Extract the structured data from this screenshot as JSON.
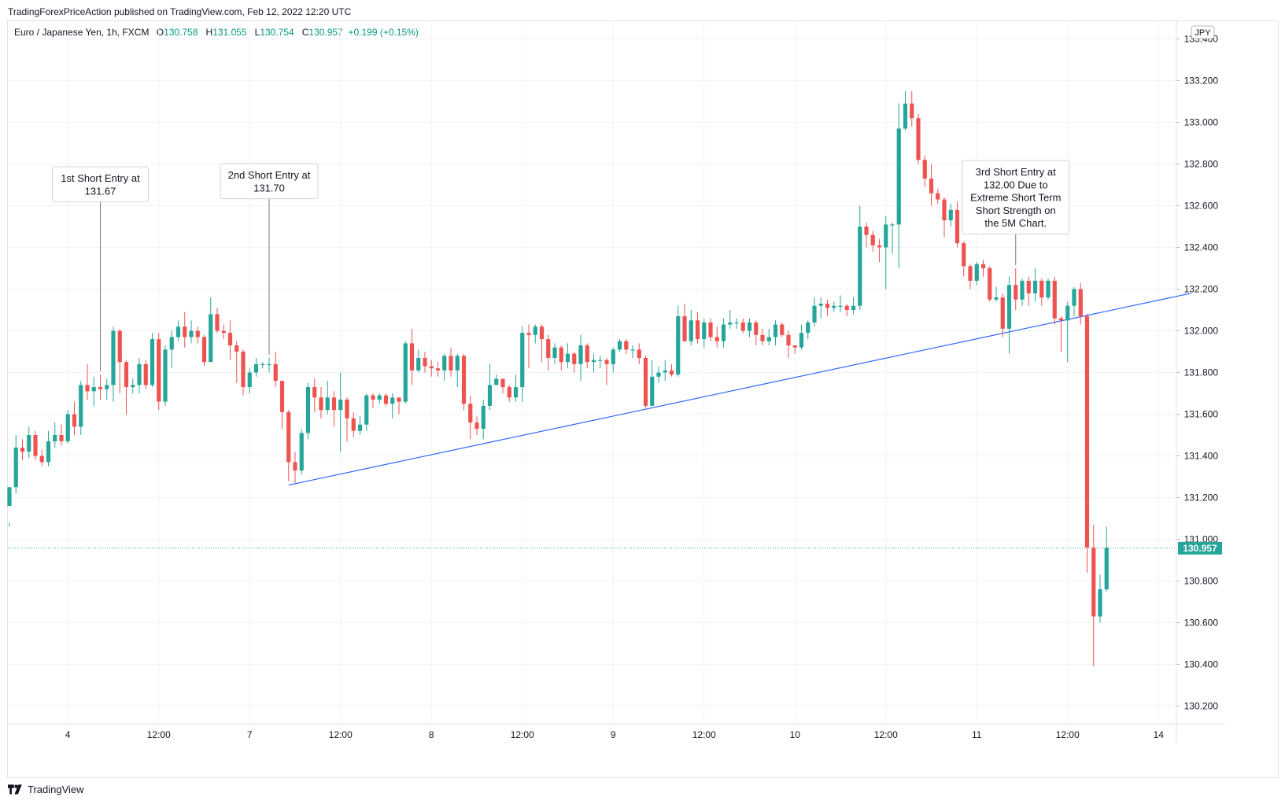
{
  "header": {
    "published": "TradingForexPriceAction published on TradingView.com, Feb 12, 2022 12:20 UTC"
  },
  "legend": {
    "symbol": "Euro / Japanese Yen, 1h, FXCM",
    "o_key": "O",
    "o": "130.758",
    "h_key": "H",
    "h": "131.055",
    "l_key": "L",
    "l": "130.754",
    "c_key": "C",
    "c": "130.957",
    "change": "+0.199 (+0.15%)"
  },
  "footer": {
    "brand": "TradingView"
  },
  "colors": {
    "up": "#26a69a",
    "down": "#ef5350",
    "trendline": "#2962ff",
    "price_tag": "#26a69a"
  },
  "chart_data": {
    "type": "candlestick",
    "currency": "JPY",
    "last_price": "130.957",
    "ylim": [
      130.13,
      133.53
    ],
    "y_ticks": [
      "130.200",
      "130.400",
      "130.600",
      "130.800",
      "131.000",
      "131.200",
      "131.400",
      "131.600",
      "131.800",
      "132.000",
      "132.200",
      "132.400",
      "132.600",
      "132.800",
      "133.000",
      "133.200",
      "133.400"
    ],
    "x_ticks": [
      {
        "label": "4",
        "i": 9
      },
      {
        "label": "12:00",
        "i": 23
      },
      {
        "label": "7",
        "i": 37
      },
      {
        "label": "12:00",
        "i": 51
      },
      {
        "label": "8",
        "i": 65
      },
      {
        "label": "12:00",
        "i": 79
      },
      {
        "label": "9",
        "i": 93
      },
      {
        "label": "12:00",
        "i": 107
      },
      {
        "label": "10",
        "i": 121
      },
      {
        "label": "12:00",
        "i": 135
      },
      {
        "label": "11",
        "i": 149
      },
      {
        "label": "12:00",
        "i": 163
      },
      {
        "label": "14",
        "i": 177
      }
    ],
    "candles": [
      [
        131.16,
        131.25,
        131.08,
        131.06
      ],
      [
        131.25,
        131.44,
        131.5,
        131.22
      ],
      [
        131.44,
        131.42,
        131.48,
        131.38
      ],
      [
        131.42,
        131.5,
        131.54,
        131.39
      ],
      [
        131.5,
        131.4,
        131.52,
        131.38
      ],
      [
        131.4,
        131.37,
        131.43,
        131.35
      ],
      [
        131.37,
        131.47,
        131.52,
        131.35
      ],
      [
        131.47,
        131.5,
        131.56,
        131.44
      ],
      [
        131.5,
        131.47,
        131.55,
        131.45
      ],
      [
        131.47,
        131.6,
        131.62,
        131.46
      ],
      [
        131.6,
        131.54,
        131.66,
        131.5
      ],
      [
        131.54,
        131.74,
        131.76,
        131.5
      ],
      [
        131.74,
        131.71,
        131.84,
        131.67
      ],
      [
        131.71,
        131.73,
        131.78,
        131.64
      ],
      [
        131.73,
        131.72,
        131.79,
        131.67
      ],
      [
        131.72,
        131.74,
        131.77,
        131.67
      ],
      [
        131.74,
        132.0,
        132.02,
        131.66
      ],
      [
        132.0,
        131.85,
        132.01,
        131.7
      ],
      [
        131.85,
        131.73,
        131.86,
        131.6
      ],
      [
        131.73,
        131.74,
        131.77,
        131.7
      ],
      [
        131.74,
        131.84,
        131.87,
        131.7
      ],
      [
        131.84,
        131.74,
        131.86,
        131.72
      ],
      [
        131.74,
        131.96,
        131.99,
        131.73
      ],
      [
        131.96,
        131.66,
        131.99,
        131.62
      ],
      [
        131.66,
        131.91,
        131.93,
        131.64
      ],
      [
        131.91,
        131.97,
        132.0,
        131.82
      ],
      [
        131.97,
        132.02,
        132.05,
        131.95
      ],
      [
        132.02,
        131.97,
        132.09,
        131.92
      ],
      [
        131.97,
        132.0,
        132.05,
        131.94
      ],
      [
        132.0,
        131.97,
        132.02,
        131.94
      ],
      [
        131.97,
        131.85,
        131.98,
        131.83
      ],
      [
        131.85,
        132.08,
        132.16,
        131.88
      ],
      [
        132.08,
        132.0,
        132.11,
        131.99
      ],
      [
        132.0,
        131.99,
        132.03,
        131.96
      ],
      [
        131.99,
        131.93,
        132.05,
        131.86
      ],
      [
        131.93,
        131.9,
        131.95,
        131.75
      ],
      [
        131.9,
        131.73,
        131.91,
        131.69
      ],
      [
        131.73,
        131.8,
        131.82,
        131.7
      ],
      [
        131.8,
        131.84,
        131.87,
        131.78
      ],
      [
        131.84,
        131.84,
        131.85,
        131.82
      ],
      [
        131.84,
        131.84,
        131.87,
        131.8
      ],
      [
        131.84,
        131.76,
        131.9,
        131.73
      ],
      [
        131.76,
        131.61,
        131.76,
        131.53
      ],
      [
        131.61,
        131.37,
        131.62,
        131.28
      ],
      [
        131.37,
        131.33,
        131.42,
        131.27
      ],
      [
        131.33,
        131.51,
        131.53,
        131.31
      ],
      [
        131.51,
        131.73,
        131.75,
        131.48
      ],
      [
        131.73,
        131.68,
        131.77,
        131.61
      ],
      [
        131.68,
        131.62,
        131.73,
        131.58
      ],
      [
        131.62,
        131.68,
        131.76,
        131.6
      ],
      [
        131.68,
        131.62,
        131.71,
        131.54
      ],
      [
        131.62,
        131.67,
        131.8,
        131.42
      ],
      [
        131.67,
        131.58,
        131.68,
        131.47
      ],
      [
        131.58,
        131.52,
        131.61,
        131.49
      ],
      [
        131.52,
        131.55,
        131.59,
        131.5
      ],
      [
        131.55,
        131.69,
        131.7,
        131.52
      ],
      [
        131.69,
        131.67,
        131.7,
        131.63
      ],
      [
        131.67,
        131.69,
        131.7,
        131.65
      ],
      [
        131.69,
        131.65,
        131.7,
        131.64
      ],
      [
        131.65,
        131.68,
        131.7,
        131.58
      ],
      [
        131.68,
        131.66,
        131.68,
        131.6
      ],
      [
        131.66,
        131.94,
        131.95,
        131.65
      ],
      [
        131.94,
        131.81,
        132.01,
        131.74
      ],
      [
        131.81,
        131.87,
        131.91,
        131.8
      ],
      [
        131.87,
        131.83,
        131.9,
        131.8
      ],
      [
        131.83,
        131.82,
        131.86,
        131.78
      ],
      [
        131.82,
        131.81,
        131.85,
        131.78
      ],
      [
        131.81,
        131.88,
        131.89,
        131.76
      ],
      [
        131.88,
        131.81,
        131.92,
        131.78
      ],
      [
        131.81,
        131.88,
        131.89,
        131.73
      ],
      [
        131.88,
        131.65,
        131.89,
        131.62
      ],
      [
        131.65,
        131.56,
        131.69,
        131.48
      ],
      [
        131.56,
        131.53,
        131.59,
        131.5
      ],
      [
        131.53,
        131.64,
        131.67,
        131.48
      ],
      [
        131.64,
        131.74,
        131.84,
        131.62
      ],
      [
        131.74,
        131.77,
        131.79,
        131.74
      ],
      [
        131.77,
        131.73,
        131.77,
        131.7
      ],
      [
        131.73,
        131.68,
        131.74,
        131.66
      ],
      [
        131.68,
        131.73,
        131.79,
        131.66
      ],
      [
        131.73,
        131.99,
        132.02,
        131.66
      ],
      [
        131.99,
        131.98,
        132.03,
        131.82
      ],
      [
        131.98,
        132.02,
        132.03,
        131.94
      ],
      [
        132.02,
        131.96,
        132.03,
        131.85
      ],
      [
        131.96,
        131.87,
        131.98,
        131.81
      ],
      [
        131.87,
        131.92,
        131.94,
        131.84
      ],
      [
        131.92,
        131.85,
        131.93,
        131.81
      ],
      [
        131.85,
        131.89,
        131.94,
        131.82
      ],
      [
        131.89,
        131.84,
        131.9,
        131.8
      ],
      [
        131.84,
        131.93,
        131.98,
        131.76
      ],
      [
        131.93,
        131.85,
        131.94,
        131.82
      ],
      [
        131.85,
        131.86,
        131.89,
        131.8
      ],
      [
        131.86,
        131.86,
        131.88,
        131.82
      ],
      [
        131.86,
        131.84,
        131.87,
        131.74
      ],
      [
        131.84,
        131.91,
        131.92,
        131.8
      ],
      [
        131.91,
        131.95,
        131.96,
        131.9
      ],
      [
        131.95,
        131.91,
        131.96,
        131.89
      ],
      [
        131.91,
        131.91,
        131.93,
        131.87
      ],
      [
        131.91,
        131.87,
        131.94,
        131.84
      ],
      [
        131.87,
        131.64,
        131.88,
        131.63
      ],
      [
        131.64,
        131.78,
        131.86,
        131.64
      ],
      [
        131.78,
        131.8,
        131.83,
        131.75
      ],
      [
        131.8,
        131.81,
        131.86,
        131.76
      ],
      [
        131.81,
        131.79,
        131.84,
        131.78
      ],
      [
        131.79,
        132.07,
        132.12,
        131.78
      ],
      [
        132.07,
        131.95,
        132.13,
        131.95
      ],
      [
        131.95,
        132.05,
        132.1,
        131.93
      ],
      [
        132.05,
        131.96,
        132.09,
        131.94
      ],
      [
        131.96,
        132.04,
        132.06,
        131.92
      ],
      [
        132.04,
        131.97,
        132.06,
        131.95
      ],
      [
        131.97,
        131.95,
        132.02,
        131.92
      ],
      [
        131.95,
        132.03,
        132.06,
        131.92
      ],
      [
        132.03,
        132.04,
        132.1,
        132.01
      ],
      [
        132.04,
        132.04,
        132.06,
        132.01
      ],
      [
        132.04,
        132.0,
        132.06,
        131.99
      ],
      [
        132.0,
        132.04,
        132.06,
        131.97
      ],
      [
        132.04,
        131.98,
        132.05,
        131.93
      ],
      [
        131.98,
        131.95,
        132.01,
        131.93
      ],
      [
        131.95,
        131.97,
        132.01,
        131.93
      ],
      [
        131.97,
        132.03,
        132.05,
        131.93
      ],
      [
        132.03,
        131.98,
        132.04,
        131.97
      ],
      [
        131.98,
        131.93,
        132.0,
        131.87
      ],
      [
        131.93,
        131.92,
        131.93,
        131.89
      ],
      [
        131.92,
        131.99,
        132.03,
        131.91
      ],
      [
        131.99,
        132.04,
        132.05,
        131.96
      ],
      [
        132.04,
        132.12,
        132.16,
        132.02
      ],
      [
        132.12,
        132.13,
        132.16,
        132.06
      ],
      [
        132.13,
        132.11,
        132.15,
        132.07
      ],
      [
        132.11,
        132.12,
        132.14,
        132.09
      ],
      [
        132.12,
        132.12,
        132.17,
        132.09
      ],
      [
        132.12,
        132.1,
        132.13,
        132.07
      ],
      [
        132.1,
        132.12,
        132.16,
        132.08
      ],
      [
        132.12,
        132.5,
        132.6,
        132.1
      ],
      [
        132.5,
        132.46,
        132.52,
        132.4
      ],
      [
        132.46,
        132.41,
        132.48,
        132.38
      ],
      [
        132.41,
        132.4,
        132.44,
        132.33
      ],
      [
        132.4,
        132.51,
        132.55,
        132.2
      ],
      [
        132.51,
        132.51,
        132.52,
        132.37
      ],
      [
        132.51,
        132.97,
        133.09,
        132.3
      ],
      [
        132.97,
        133.09,
        133.15,
        132.96
      ],
      [
        133.09,
        133.02,
        133.15,
        132.98
      ],
      [
        133.02,
        132.82,
        133.04,
        132.8
      ],
      [
        132.82,
        132.73,
        132.84,
        132.69
      ],
      [
        132.73,
        132.66,
        132.8,
        132.6
      ],
      [
        132.66,
        132.63,
        132.68,
        132.61
      ],
      [
        132.63,
        132.53,
        132.64,
        132.45
      ],
      [
        132.53,
        132.58,
        132.61,
        132.5
      ],
      [
        132.58,
        132.42,
        132.62,
        132.4
      ],
      [
        132.42,
        132.31,
        132.43,
        132.26
      ],
      [
        132.31,
        132.24,
        132.32,
        132.2
      ],
      [
        132.24,
        132.32,
        132.33,
        132.22
      ],
      [
        132.32,
        132.3,
        132.34,
        132.26
      ],
      [
        132.3,
        132.15,
        132.31,
        132.14
      ],
      [
        132.15,
        132.16,
        132.21,
        132.14
      ],
      [
        132.16,
        132.01,
        132.18,
        131.97
      ],
      [
        132.01,
        132.22,
        132.26,
        131.89
      ],
      [
        132.22,
        132.15,
        132.3,
        132.1
      ],
      [
        132.15,
        132.24,
        132.25,
        132.12
      ],
      [
        132.24,
        132.18,
        132.26,
        132.12
      ],
      [
        132.18,
        132.24,
        132.3,
        132.14
      ],
      [
        132.24,
        132.16,
        132.25,
        132.12
      ],
      [
        132.16,
        132.24,
        132.25,
        132.15
      ],
      [
        132.24,
        132.06,
        132.26,
        132.03
      ],
      [
        132.06,
        132.05,
        132.07,
        131.9
      ],
      [
        132.05,
        132.12,
        132.14,
        131.85
      ],
      [
        132.12,
        132.2,
        132.21,
        132.07
      ],
      [
        132.2,
        132.07,
        132.23,
        132.03
      ],
      [
        132.07,
        130.96,
        132.08,
        130.84
      ],
      [
        130.96,
        130.63,
        131.07,
        130.39
      ],
      [
        130.63,
        130.76,
        130.83,
        130.6
      ],
      [
        130.76,
        130.96,
        131.06,
        130.75
      ]
    ],
    "trendline": [
      [
        43,
        131.26
      ],
      [
        182,
        132.18
      ]
    ],
    "annotations": [
      {
        "lines": [
          "1st Short Entry at",
          "131.67"
        ],
        "i": 14
      },
      {
        "lines": [
          "2nd Short Entry at",
          "131.70"
        ],
        "i": 40
      },
      {
        "lines": [
          "3rd Short Entry at",
          "132.00 Due to",
          "Extreme Short Term",
          "Short Strength on",
          "the 5M Chart."
        ],
        "i": 155
      }
    ]
  }
}
